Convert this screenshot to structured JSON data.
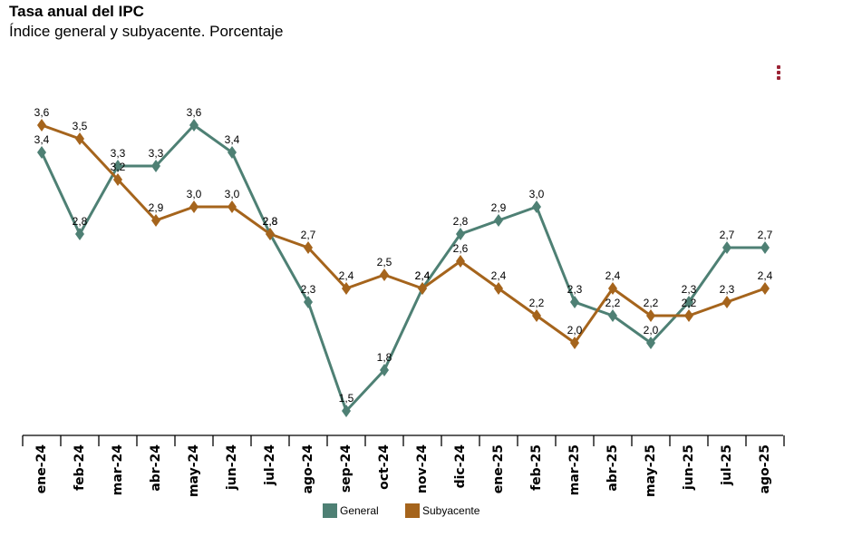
{
  "chart_data": {
    "type": "line",
    "title": "Tasa anual del IPC",
    "subtitle": "Índice general y subyacente. Porcentaje",
    "categories": [
      "ene-24",
      "feb-24",
      "mar-24",
      "abr-24",
      "may-24",
      "jun-24",
      "jul-24",
      "ago-24",
      "sep-24",
      "oct-24",
      "nov-24",
      "dic-24",
      "ene-25",
      "feb-25",
      "mar-25",
      "abr-25",
      "may-25",
      "jun-25",
      "jul-25",
      "ago-25"
    ],
    "series": [
      {
        "name": "General",
        "color": "#4e8074",
        "values": [
          3.4,
          2.8,
          3.3,
          3.3,
          3.6,
          3.4,
          2.8,
          2.3,
          1.5,
          1.8,
          2.4,
          2.8,
          2.9,
          3.0,
          2.3,
          2.2,
          2.0,
          2.3,
          2.7,
          2.7
        ],
        "labels": [
          "3,4",
          "2,8",
          "3,3",
          "3,3",
          "3,6",
          "3,4",
          "2,8",
          "2,3",
          "1,5",
          "1,8",
          "2,4",
          "2,8",
          "2,9",
          "3,0",
          "2,3",
          "2,2",
          "2,0",
          "2,3",
          "2,7",
          "2,7"
        ]
      },
      {
        "name": "Subyacente",
        "color": "#a5641c",
        "values": [
          3.6,
          3.5,
          3.2,
          2.9,
          3.0,
          3.0,
          2.8,
          2.7,
          2.4,
          2.5,
          2.4,
          2.6,
          2.4,
          2.2,
          2.0,
          2.4,
          2.2,
          2.2,
          2.3,
          2.4
        ],
        "labels": [
          "3,6",
          "3,5",
          "3,2",
          "2,9",
          "3,0",
          "3,0",
          "2,8",
          "2,7",
          "2,4",
          "2,5",
          "2,4",
          "2,6",
          "2,4",
          "2,2",
          "2,0",
          "2,4",
          "2,2",
          "2,2",
          "2,3",
          "2,4"
        ]
      }
    ],
    "ylim": [
      1.3,
      3.8
    ],
    "grid": false,
    "legend": "bottom-center",
    "xlabel": "",
    "ylabel": ""
  }
}
